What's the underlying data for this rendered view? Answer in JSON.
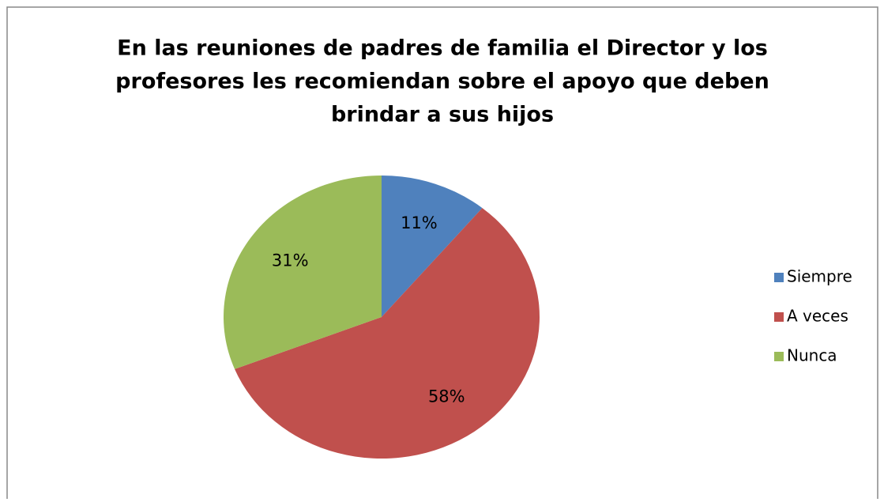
{
  "chart_data": {
    "type": "pie",
    "title": [
      "En las reuniones de padres de familia el Director y los",
      "profesores les recomiendan sobre el apoyo que deben",
      "brindar a sus hijos"
    ],
    "categories": [
      "Siempre",
      "A veces",
      "Nunca"
    ],
    "values": [
      11,
      58,
      31
    ],
    "value_labels": [
      "11%",
      "58%",
      "31%"
    ],
    "colors": [
      "#4f81bd",
      "#c0504d",
      "#9bbb59"
    ],
    "legend": "right"
  }
}
